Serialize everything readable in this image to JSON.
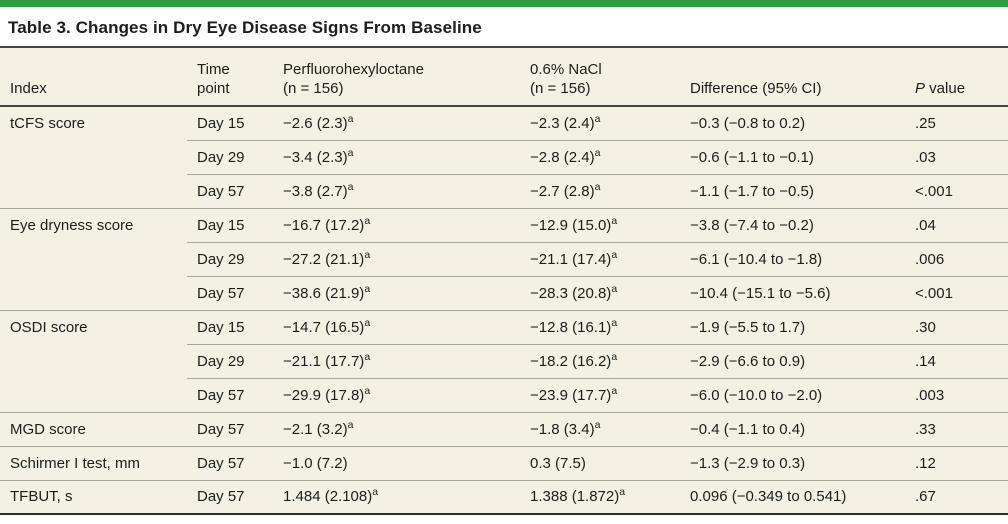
{
  "title": "Table 3. Changes in Dry Eye Disease Signs From Baseline",
  "accent_color": "#2f9e41",
  "table_background_color": "#f4f1e4",
  "header": {
    "index": "Index",
    "time_line1": "Time",
    "time_line2": "point",
    "drug_line1": "Perfluorohexyloctane",
    "drug_line2": "(n = 156)",
    "nacl_line1": "0.6% NaCl",
    "nacl_line2": "(n = 156)",
    "diff": "Difference (95% CI)",
    "p_italic": "P",
    "p_rest": " value"
  },
  "rows": [
    {
      "section_start": true,
      "index": "tCFS score",
      "time": "Day 15",
      "drug": "−2.6 (2.3)",
      "drug_sup": "a",
      "nacl": "−2.3 (2.4)",
      "nacl_sup": "a",
      "diff": "−0.3 (−0.8 to 0.2)",
      "p": ".25"
    },
    {
      "section_start": false,
      "index": "",
      "time": "Day 29",
      "drug": "−3.4 (2.3)",
      "drug_sup": "a",
      "nacl": "−2.8 (2.4)",
      "nacl_sup": "a",
      "diff": "−0.6 (−1.1 to −0.1)",
      "p": ".03"
    },
    {
      "section_start": false,
      "index": "",
      "time": "Day 57",
      "drug": "−3.8 (2.7)",
      "drug_sup": "a",
      "nacl": "−2.7 (2.8)",
      "nacl_sup": "a",
      "diff": "−1.1 (−1.7 to −0.5)",
      "p": "<.001"
    },
    {
      "section_start": true,
      "index": "Eye dryness score",
      "time": "Day 15",
      "drug": "−16.7 (17.2)",
      "drug_sup": "a",
      "nacl": "−12.9 (15.0)",
      "nacl_sup": "a",
      "diff": "−3.8 (−7.4 to −0.2)",
      "p": ".04"
    },
    {
      "section_start": false,
      "index": "",
      "time": "Day 29",
      "drug": "−27.2 (21.1)",
      "drug_sup": "a",
      "nacl": "−21.1 (17.4)",
      "nacl_sup": "a",
      "diff": "−6.1 (−10.4 to −1.8)",
      "p": ".006"
    },
    {
      "section_start": false,
      "index": "",
      "time": "Day 57",
      "drug": "−38.6 (21.9)",
      "drug_sup": "a",
      "nacl": "−28.3 (20.8)",
      "nacl_sup": "a",
      "diff": "−10.4 (−15.1 to −5.6)",
      "p": "<.001"
    },
    {
      "section_start": true,
      "index": "OSDI score",
      "time": "Day 15",
      "drug": "−14.7 (16.5)",
      "drug_sup": "a",
      "nacl": "−12.8 (16.1)",
      "nacl_sup": "a",
      "diff": "−1.9 (−5.5 to 1.7)",
      "p": ".30"
    },
    {
      "section_start": false,
      "index": "",
      "time": "Day 29",
      "drug": "−21.1 (17.7)",
      "drug_sup": "a",
      "nacl": "−18.2 (16.2)",
      "nacl_sup": "a",
      "diff": "−2.9 (−6.6 to 0.9)",
      "p": ".14"
    },
    {
      "section_start": false,
      "index": "",
      "time": "Day 57",
      "drug": "−29.9 (17.8)",
      "drug_sup": "a",
      "nacl": "−23.9 (17.7)",
      "nacl_sup": "a",
      "diff": "−6.0 (−10.0 to −2.0)",
      "p": ".003"
    },
    {
      "section_start": true,
      "index": "MGD score",
      "time": "Day 57",
      "drug": "−2.1 (3.2)",
      "drug_sup": "a",
      "nacl": "−1.8 (3.4)",
      "nacl_sup": "a",
      "diff": "−0.4 (−1.1 to 0.4)",
      "p": ".33"
    },
    {
      "section_start": true,
      "index": "Schirmer I test, mm",
      "time": "Day 57",
      "drug": "−1.0 (7.2)",
      "nacl": "0.3 (7.5)",
      "diff": "−1.3 (−2.9 to 0.3)",
      "p": ".12"
    },
    {
      "section_start": true,
      "index": "TFBUT, s",
      "time": "Day 57",
      "drug": "1.484 (2.108)",
      "drug_sup": "a",
      "nacl": "1.388 (1.872)",
      "nacl_sup": "a",
      "diff": "0.096 (−0.349 to 0.541)",
      "p": ".67"
    }
  ]
}
